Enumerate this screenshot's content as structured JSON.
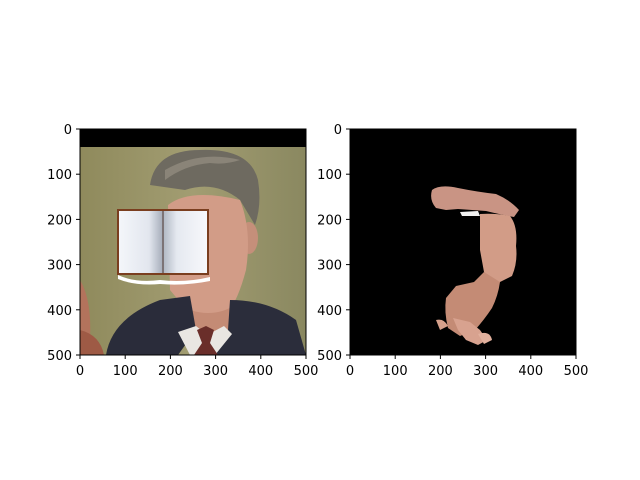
{
  "panels": [
    {
      "id": "left",
      "content": "photo of man in suit with an open-book icon overlay covering the face",
      "x_ticks": [
        "0",
        "100",
        "200",
        "300",
        "400",
        "500"
      ],
      "y_ticks": [
        "0",
        "100",
        "200",
        "300",
        "400",
        "500"
      ],
      "x_range": [
        0,
        500
      ],
      "y_range": [
        0,
        500
      ]
    },
    {
      "id": "right",
      "content": "segmentation mask showing only the skin region on a black background",
      "x_ticks": [
        "0",
        "100",
        "200",
        "300",
        "400",
        "500"
      ],
      "y_ticks": [
        "0",
        "100",
        "200",
        "300",
        "400",
        "500"
      ],
      "x_range": [
        0,
        500
      ],
      "y_range": [
        0,
        500
      ]
    }
  ],
  "colors": {
    "mask_background": "#000000",
    "skin": "#d29c87",
    "suit": "#2a2c3a",
    "photo_background": "#9a9468"
  },
  "icons": [
    "book-icon"
  ]
}
